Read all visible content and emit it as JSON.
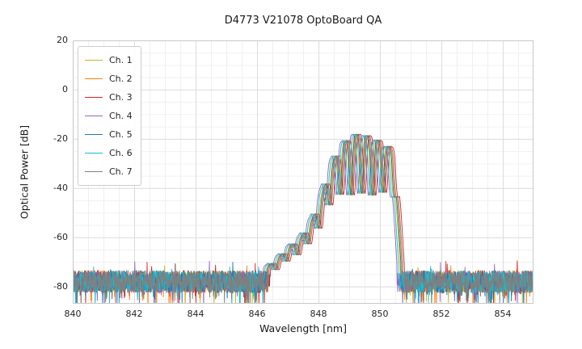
{
  "chart_data": {
    "type": "line",
    "title": "D4773 V21078 OptoBoard QA",
    "xlabel": "Wavelength [nm]",
    "ylabel": "Optical Power [dB]",
    "xlim": [
      840,
      855
    ],
    "ylim": [
      -87,
      20
    ],
    "xticks": [
      840,
      842,
      844,
      846,
      848,
      850,
      852,
      854
    ],
    "yticks": [
      20,
      0,
      -20,
      -40,
      -60,
      -80
    ],
    "grid": true,
    "legend_position": "upper left",
    "noise_floor_db": -78,
    "noise_band_db": [
      -88,
      -68
    ],
    "mode_spacing_nm": 0.35,
    "signal_envelope": [
      [
        840.0,
        -200
      ],
      [
        846.0,
        -200
      ],
      [
        846.3,
        -72
      ],
      [
        846.6,
        -69
      ],
      [
        847.0,
        -64
      ],
      [
        847.4,
        -60
      ],
      [
        847.8,
        -52
      ],
      [
        848.1,
        -42
      ],
      [
        848.4,
        -30
      ],
      [
        848.7,
        -23
      ],
      [
        849.0,
        -19
      ],
      [
        849.25,
        -18
      ],
      [
        849.5,
        -18.5
      ],
      [
        849.8,
        -20
      ],
      [
        850.1,
        -22
      ],
      [
        850.35,
        -24
      ],
      [
        850.5,
        -40
      ],
      [
        850.65,
        -70
      ],
      [
        850.8,
        -200
      ],
      [
        855.0,
        -200
      ]
    ],
    "notch_depth_db": [
      [
        846.2,
        3
      ],
      [
        847.0,
        5
      ],
      [
        847.6,
        7
      ],
      [
        848.2,
        12
      ],
      [
        848.6,
        18
      ],
      [
        849.0,
        24
      ],
      [
        849.6,
        24
      ],
      [
        850.0,
        22
      ],
      [
        850.45,
        10
      ]
    ],
    "series": [
      {
        "name": "Ch. 1",
        "color": "#bcbd22",
        "shift_nm": 0.0
      },
      {
        "name": "Ch. 2",
        "color": "#ff7f0e",
        "shift_nm": 0.06
      },
      {
        "name": "Ch. 3",
        "color": "#d62728",
        "shift_nm": 0.14
      },
      {
        "name": "Ch. 4",
        "color": "#9467bd",
        "shift_nm": -0.1
      },
      {
        "name": "Ch. 5",
        "color": "#1f77b4",
        "shift_nm": 0.03
      },
      {
        "name": "Ch. 6",
        "color": "#17becf",
        "shift_nm": -0.05
      },
      {
        "name": "Ch. 7",
        "color": "#7f7f7f",
        "shift_nm": 0.09
      }
    ]
  }
}
